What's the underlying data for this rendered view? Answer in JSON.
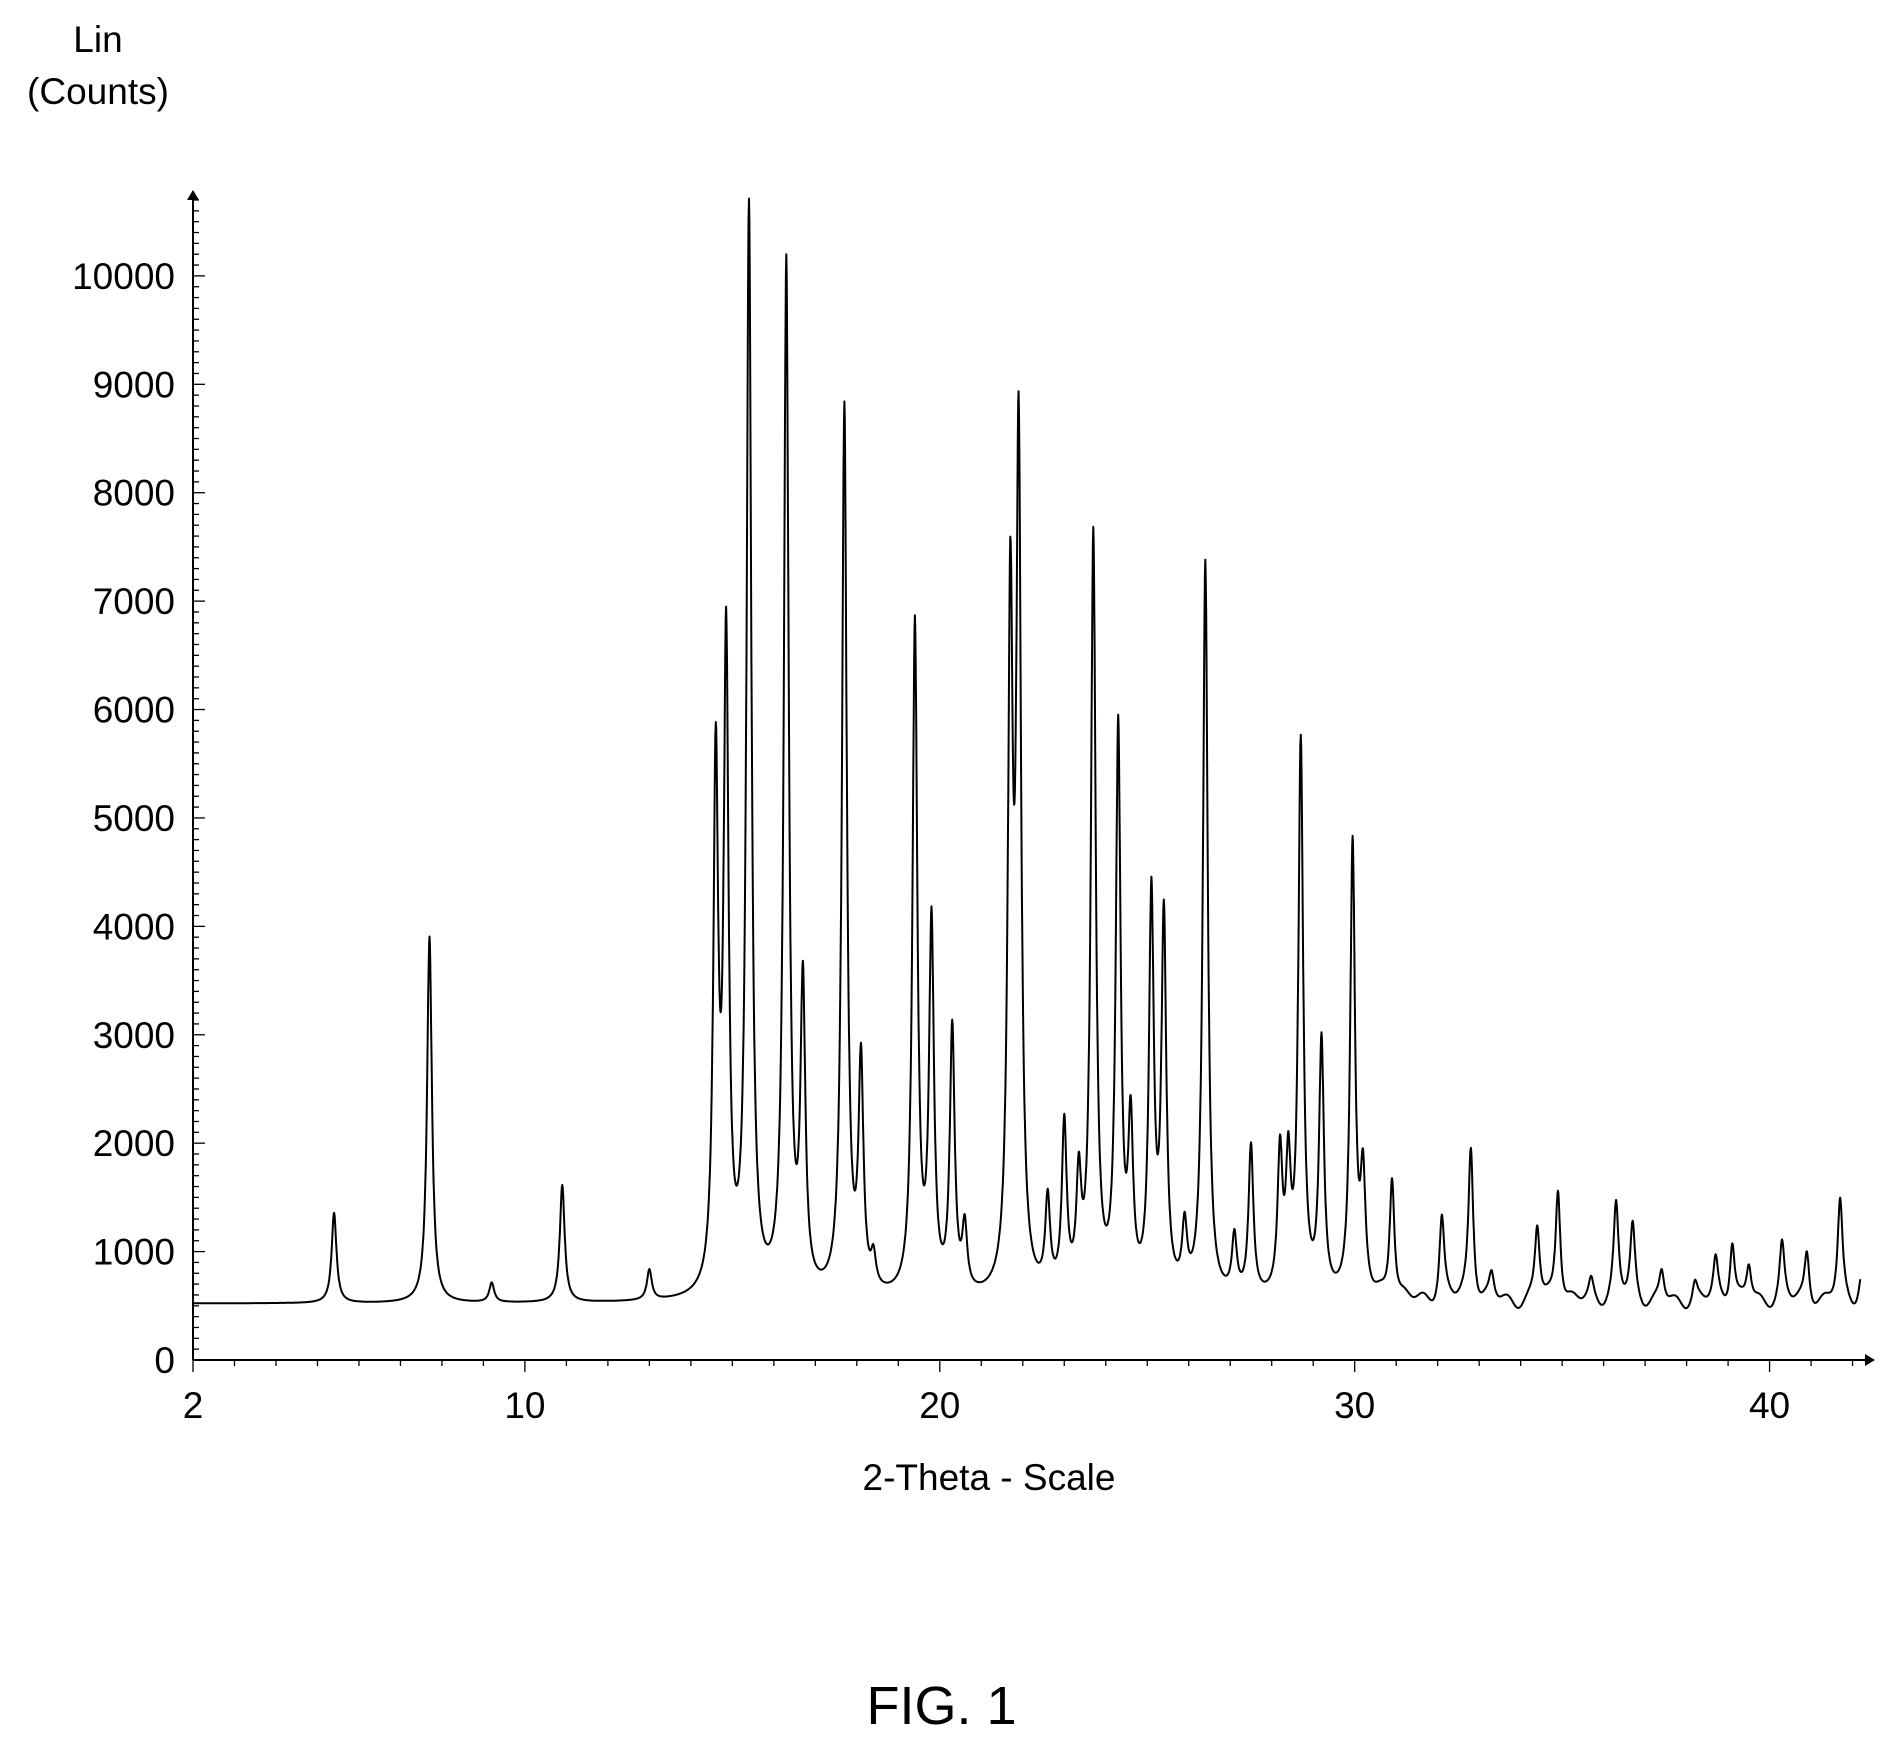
{
  "figure_label": "FIG. 1",
  "chart_data": {
    "type": "line",
    "title": "",
    "xlabel": "2-Theta - Scale",
    "ylabel_line1": "Lin",
    "ylabel_line2": "(Counts)",
    "xlim": [
      2,
      42.3
    ],
    "ylim": [
      0,
      10700
    ],
    "x_ticks": [
      2,
      10,
      20,
      30,
      40
    ],
    "y_ticks": [
      0,
      1000,
      2000,
      3000,
      4000,
      5000,
      6000,
      7000,
      8000,
      9000,
      10000
    ],
    "grid": false,
    "line_color": "#000000",
    "baseline": 520,
    "peaks": [
      {
        "x": 5.4,
        "y": 1350
      },
      {
        "x": 7.7,
        "y": 3900
      },
      {
        "x": 9.2,
        "y": 700
      },
      {
        "x": 10.9,
        "y": 1600
      },
      {
        "x": 13.0,
        "y": 800
      },
      {
        "x": 14.6,
        "y": 5350
      },
      {
        "x": 14.85,
        "y": 6400
      },
      {
        "x": 15.4,
        "y": 10500
      },
      {
        "x": 16.3,
        "y": 10000
      },
      {
        "x": 16.7,
        "y": 3300
      },
      {
        "x": 17.7,
        "y": 8700
      },
      {
        "x": 18.1,
        "y": 2600
      },
      {
        "x": 18.4,
        "y": 800
      },
      {
        "x": 19.4,
        "y": 6700
      },
      {
        "x": 19.8,
        "y": 3900
      },
      {
        "x": 20.3,
        "y": 2950
      },
      {
        "x": 20.6,
        "y": 1100
      },
      {
        "x": 21.7,
        "y": 6700
      },
      {
        "x": 21.9,
        "y": 8200
      },
      {
        "x": 22.6,
        "y": 1350
      },
      {
        "x": 23.0,
        "y": 2050
      },
      {
        "x": 23.35,
        "y": 1500
      },
      {
        "x": 23.7,
        "y": 7500
      },
      {
        "x": 24.3,
        "y": 5700
      },
      {
        "x": 24.6,
        "y": 2000
      },
      {
        "x": 25.1,
        "y": 4150
      },
      {
        "x": 25.4,
        "y": 3950
      },
      {
        "x": 25.9,
        "y": 1100
      },
      {
        "x": 26.4,
        "y": 7300
      },
      {
        "x": 27.1,
        "y": 1050
      },
      {
        "x": 27.5,
        "y": 1900
      },
      {
        "x": 28.2,
        "y": 1800
      },
      {
        "x": 28.4,
        "y": 1650
      },
      {
        "x": 28.7,
        "y": 5600
      },
      {
        "x": 29.2,
        "y": 2850
      },
      {
        "x": 29.95,
        "y": 4700
      },
      {
        "x": 30.2,
        "y": 1550
      },
      {
        "x": 30.9,
        "y": 1700
      },
      {
        "x": 32.1,
        "y": 1300
      },
      {
        "x": 32.8,
        "y": 1950
      },
      {
        "x": 33.3,
        "y": 750
      },
      {
        "x": 34.4,
        "y": 1200
      },
      {
        "x": 34.9,
        "y": 1600
      },
      {
        "x": 35.7,
        "y": 700
      },
      {
        "x": 36.3,
        "y": 1400
      },
      {
        "x": 36.7,
        "y": 1200
      },
      {
        "x": 37.4,
        "y": 800
      },
      {
        "x": 38.2,
        "y": 700
      },
      {
        "x": 38.7,
        "y": 900
      },
      {
        "x": 39.1,
        "y": 1100
      },
      {
        "x": 39.5,
        "y": 850
      },
      {
        "x": 40.3,
        "y": 1050
      },
      {
        "x": 40.9,
        "y": 1000
      },
      {
        "x": 41.7,
        "y": 1450
      },
      {
        "x": 42.2,
        "y": 750
      }
    ]
  }
}
